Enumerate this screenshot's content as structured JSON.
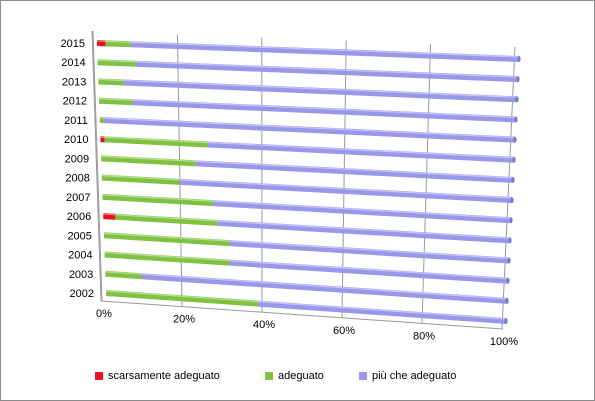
{
  "chart_data": {
    "type": "bar",
    "orientation": "horizontal-stacked-100",
    "categories": [
      "2002",
      "2003",
      "2004",
      "2005",
      "2006",
      "2007",
      "2008",
      "2009",
      "2010",
      "2011",
      "2012",
      "2013",
      "2014",
      "2015"
    ],
    "series": [
      {
        "name": "scarsamente adeguato",
        "color": "#e8121e",
        "values": [
          0,
          0,
          0,
          0,
          3,
          0,
          0,
          0,
          1,
          0,
          0,
          0,
          0,
          2
        ]
      },
      {
        "name": "adeguato",
        "color": "#7fc241",
        "values": [
          38,
          9,
          31,
          31,
          25,
          27,
          19,
          23,
          25,
          1,
          8,
          6,
          9,
          6
        ]
      },
      {
        "name": "più che adeguato",
        "color": "#9a97ea",
        "values": [
          62,
          91,
          69,
          69,
          72,
          73,
          81,
          77,
          74,
          99,
          92,
          94,
          91,
          92
        ]
      }
    ],
    "x_ticks": [
      "0%",
      "20%",
      "40%",
      "60%",
      "80%",
      "100%"
    ],
    "xlim": [
      0,
      100
    ],
    "grid": true,
    "legend": "bottom"
  }
}
